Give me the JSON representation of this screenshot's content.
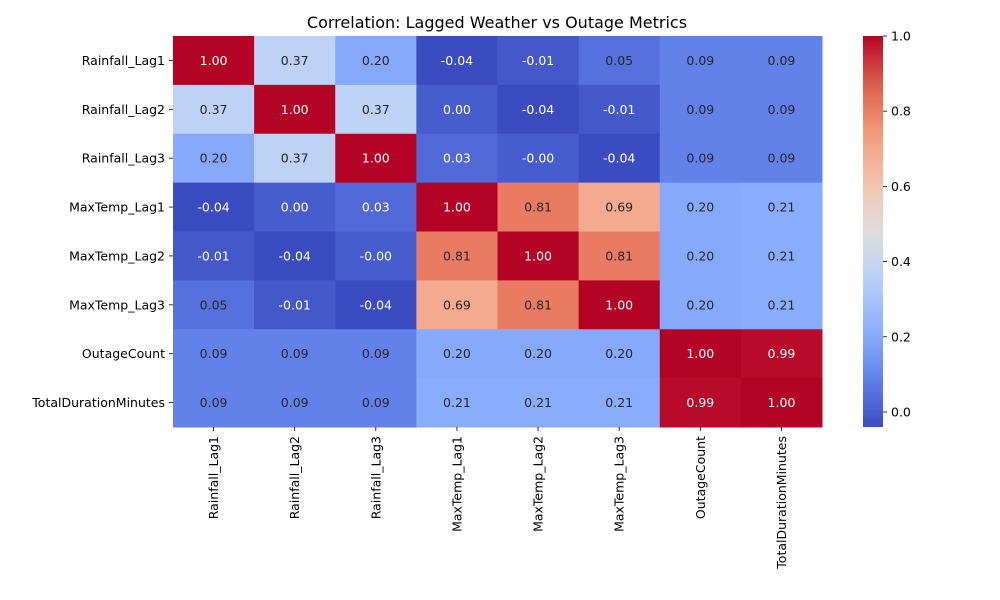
{
  "chart_data": {
    "type": "heatmap",
    "title": "Correlation: Lagged Weather vs Outage Metrics",
    "rows": [
      "Rainfall_Lag1",
      "Rainfall_Lag2",
      "Rainfall_Lag3",
      "MaxTemp_Lag1",
      "MaxTemp_Lag2",
      "MaxTemp_Lag3",
      "OutageCount",
      "TotalDurationMinutes"
    ],
    "columns": [
      "Rainfall_Lag1",
      "Rainfall_Lag2",
      "Rainfall_Lag3",
      "MaxTemp_Lag1",
      "MaxTemp_Lag2",
      "MaxTemp_Lag3",
      "OutageCount",
      "TotalDurationMinutes"
    ],
    "values": [
      [
        1.0,
        0.37,
        0.2,
        -0.04,
        -0.01,
        0.05,
        0.09,
        0.09
      ],
      [
        0.37,
        1.0,
        0.37,
        0.0,
        -0.04,
        -0.01,
        0.09,
        0.09
      ],
      [
        0.2,
        0.37,
        1.0,
        0.03,
        -0.0,
        -0.04,
        0.09,
        0.09
      ],
      [
        -0.04,
        0.0,
        0.03,
        1.0,
        0.81,
        0.69,
        0.2,
        0.21
      ],
      [
        -0.01,
        -0.04,
        -0.0,
        0.81,
        1.0,
        0.81,
        0.2,
        0.21
      ],
      [
        0.05,
        -0.01,
        -0.04,
        0.69,
        0.81,
        1.0,
        0.2,
        0.21
      ],
      [
        0.09,
        0.09,
        0.09,
        0.2,
        0.2,
        0.2,
        1.0,
        0.99
      ],
      [
        0.09,
        0.09,
        0.09,
        0.21,
        0.21,
        0.21,
        0.99,
        1.0
      ]
    ],
    "value_labels": [
      [
        "1.00",
        "0.37",
        "0.20",
        "-0.04",
        "-0.01",
        "0.05",
        "0.09",
        "0.09"
      ],
      [
        "0.37",
        "1.00",
        "0.37",
        "0.00",
        "-0.04",
        "-0.01",
        "0.09",
        "0.09"
      ],
      [
        "0.20",
        "0.37",
        "1.00",
        "0.03",
        "-0.00",
        "-0.04",
        "0.09",
        "0.09"
      ],
      [
        "-0.04",
        "0.00",
        "0.03",
        "1.00",
        "0.81",
        "0.69",
        "0.20",
        "0.21"
      ],
      [
        "-0.01",
        "-0.04",
        "-0.00",
        "0.81",
        "1.00",
        "0.81",
        "0.20",
        "0.21"
      ],
      [
        "0.05",
        "-0.01",
        "-0.04",
        "0.69",
        "0.81",
        "1.00",
        "0.20",
        "0.21"
      ],
      [
        "0.09",
        "0.09",
        "0.09",
        "0.20",
        "0.20",
        "0.20",
        "1.00",
        "0.99"
      ],
      [
        "0.09",
        "0.09",
        "0.09",
        "0.21",
        "0.21",
        "0.21",
        "0.99",
        "1.00"
      ]
    ],
    "colormap": "coolwarm",
    "vmin": -0.04,
    "vmax": 1.0,
    "colorbar": {
      "ticks": [
        0.0,
        0.2,
        0.4,
        0.6,
        0.8,
        1.0
      ],
      "tick_labels": [
        "0.0",
        "0.2",
        "0.4",
        "0.6",
        "0.8",
        "1.0"
      ]
    },
    "xlabel": "",
    "ylabel": "",
    "grid": false
  },
  "colors": {
    "cold": "#3b4cc0",
    "neutral": "#dddddd",
    "warm": "#b40426",
    "light_text": "#ffffff",
    "dark_text": "#262626"
  }
}
